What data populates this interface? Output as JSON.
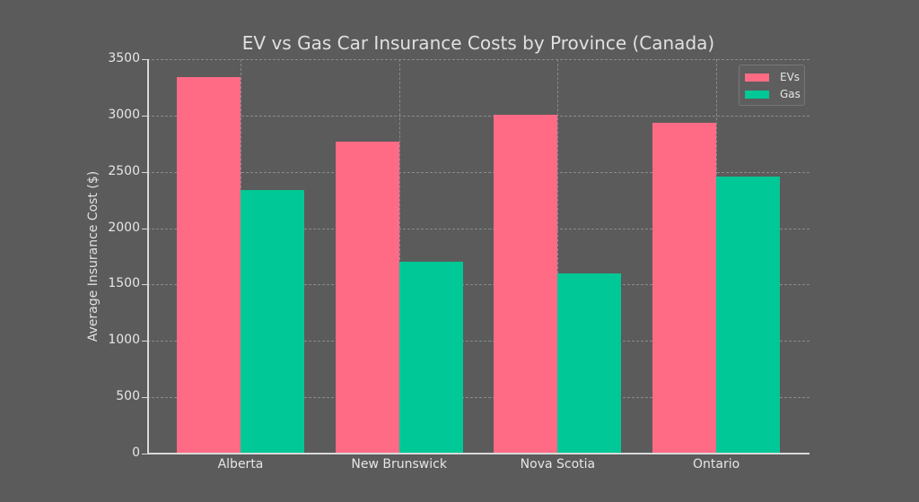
{
  "chart_data": {
    "type": "bar",
    "title": "EV vs Gas Car Insurance Costs by Province (Canada)",
    "xlabel": "",
    "ylabel": "Average Insurance Cost ($)",
    "categories": [
      "Alberta",
      "New Brunswick",
      "Nova Scotia",
      "Ontario"
    ],
    "series": [
      {
        "name": "EVs",
        "color": "#ff6b85",
        "values": [
          3340,
          2770,
          3005,
          2935
        ]
      },
      {
        "name": "Gas",
        "color": "#00c896",
        "values": [
          2340,
          1700,
          1600,
          2455
        ]
      }
    ],
    "ylim": [
      0,
      3500
    ],
    "yticks": [
      0,
      500,
      1000,
      1500,
      2000,
      2500,
      3000,
      3500
    ],
    "grid": true,
    "legend_position": "upper right"
  }
}
